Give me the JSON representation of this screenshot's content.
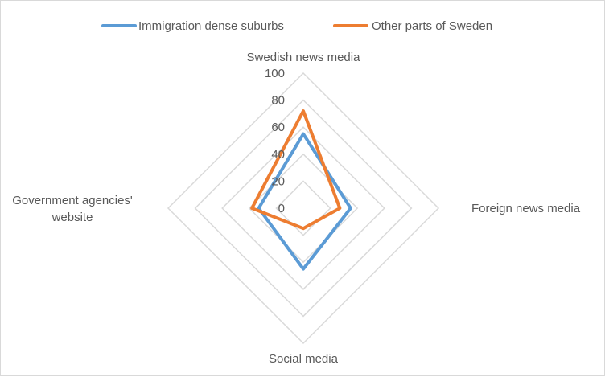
{
  "chart_data": {
    "type": "radar",
    "axes": [
      "Swedish news media",
      "Foreign news media",
      "Social media",
      "Government agencies' website"
    ],
    "axis_label_lines": [
      [
        "Swedish news media"
      ],
      [
        "Foreign news media"
      ],
      [
        "Social media"
      ],
      [
        "Government agencies'",
        "website"
      ]
    ],
    "rlim": [
      0,
      100
    ],
    "ticks": [
      0,
      20,
      40,
      60,
      80,
      100
    ],
    "grid": true,
    "legend": "top",
    "series": [
      {
        "name": "Immigration dense suburbs",
        "color": "#5b9bd5",
        "values": [
          55,
          35,
          45,
          33
        ]
      },
      {
        "name": "Other parts of Sweden",
        "color": "#ed7d31",
        "values": [
          72,
          27,
          15,
          38
        ]
      }
    ]
  }
}
